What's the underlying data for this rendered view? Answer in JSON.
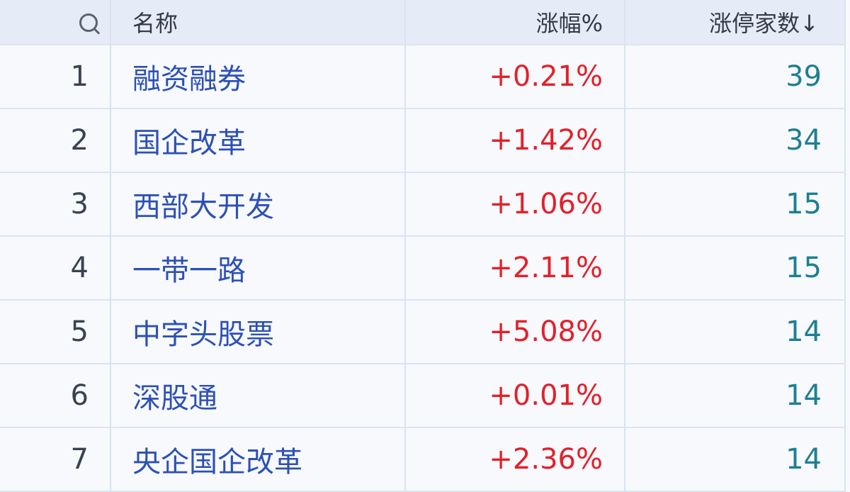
{
  "header": {
    "search_icon": "search-icon",
    "name": "名称",
    "change": "涨幅%",
    "limit_up": "涨停家数↓"
  },
  "colors": {
    "name": "#2d50b6",
    "change": "#e3202a",
    "count": "#1d7f91",
    "header_bg": "#e6ecf7"
  },
  "rows": [
    {
      "rank": "1",
      "name": "融资融券",
      "change": "+0.21%",
      "count": "39"
    },
    {
      "rank": "2",
      "name": "国企改革",
      "change": "+1.42%",
      "count": "34"
    },
    {
      "rank": "3",
      "name": "西部大开发",
      "change": "+1.06%",
      "count": "15"
    },
    {
      "rank": "4",
      "name": "一带一路",
      "change": "+2.11%",
      "count": "15"
    },
    {
      "rank": "5",
      "name": "中字头股票",
      "change": "+5.08%",
      "count": "14"
    },
    {
      "rank": "6",
      "name": "深股通",
      "change": "+0.01%",
      "count": "14"
    },
    {
      "rank": "7",
      "name": "央企国企改革",
      "change": "+2.36%",
      "count": "14"
    }
  ]
}
